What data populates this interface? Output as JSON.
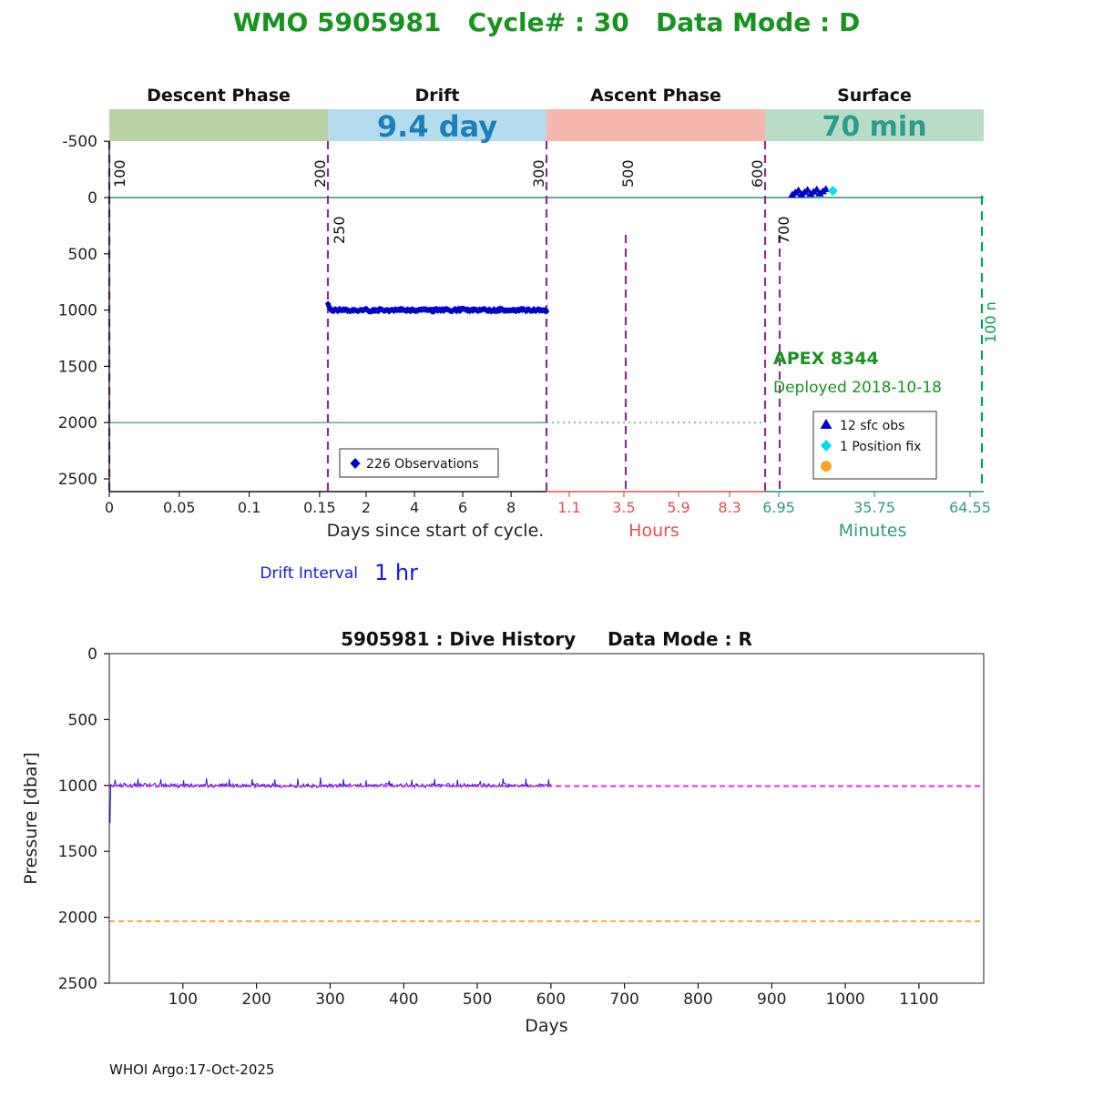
{
  "header": {
    "title": "WMO 5905981   Cycle# : 30   Data Mode : D"
  },
  "footer": {
    "credit": "WHOI Argo:17-Oct-2025"
  },
  "chart_data": [
    {
      "type": "scatter",
      "title": "WMO 5905981   Cycle# : 30   Data Mode : D",
      "phases": [
        {
          "label": "Descent Phase",
          "band_color": "#b9d3a5",
          "band_text": ""
        },
        {
          "label": "Drift",
          "band_color": "#b5dcec",
          "band_text": "9.4 day",
          "band_text_color": "#1b7fbd"
        },
        {
          "label": "Ascent Phase",
          "band_color": "#f7b6ae",
          "band_text": ""
        },
        {
          "label": "Surface",
          "band_color": "#b9dcc7",
          "band_text": "70 min",
          "band_text_color": "#2a9d8f"
        }
      ],
      "x_axis": {
        "days_label": "Days since start of cycle.",
        "segments": [
          {
            "name": "descent-days",
            "domain": [
              0,
              0.156
            ],
            "ticks": [
              "0",
              "0.05",
              "0.1",
              "0.15"
            ],
            "color": "#222222"
          },
          {
            "name": "drift-days",
            "domain": [
              0.165,
              9.4
            ],
            "ticks": [
              "2",
              "4",
              "6",
              "8"
            ],
            "color": "#222222"
          },
          {
            "name": "ascent-hours",
            "domain": [
              0,
              9.9
            ],
            "ticks": [
              "1.1",
              "3.5",
              "5.9",
              "8.3"
            ],
            "color": "#e05050",
            "axis_label": "Hours"
          },
          {
            "name": "surface-minutes",
            "domain": [
              2.8,
              68.7
            ],
            "ticks": [
              "6.95",
              "35.75",
              "64.55"
            ],
            "color": "#2e9c82",
            "axis_label": "Minutes"
          }
        ]
      },
      "y_axis": {
        "ticks": [
          -500,
          0,
          500,
          1000,
          1500,
          2000,
          2500
        ],
        "inverted": true,
        "unit": "dbar"
      },
      "reference_lines": [
        {
          "pressure": 0,
          "color": "#2a8f70",
          "style": "solid",
          "extent": "full"
        },
        {
          "pressure": 2000,
          "color": "#2a8f70",
          "style": "solid",
          "extent": "days"
        },
        {
          "pressure": 2000,
          "color": "#2a8f70",
          "style": "dotted",
          "extent": "hours"
        }
      ],
      "profile_markers": [
        {
          "label": "100"
        },
        {
          "label": "200"
        },
        {
          "label": "250"
        },
        {
          "label": "300"
        },
        {
          "label": "500"
        },
        {
          "label": "600"
        },
        {
          "label": "700"
        },
        {
          "label": "100 n",
          "color": "#00a050"
        }
      ],
      "series": [
        {
          "name": "drift-observations",
          "legend": "226 Observations",
          "marker": "diamond",
          "color": "#0000cd",
          "n": 226,
          "day_range": [
            0.17,
            9.4
          ],
          "pressure_mean": 1000,
          "pressure_jitter": 12
        },
        {
          "name": "surface-observations",
          "legend": "12 sfc obs",
          "marker": "triangle",
          "color": "#0000cd",
          "n": 12,
          "minute_range": [
            11,
            21.5
          ],
          "pressure_range": [
            -70,
            -20
          ]
        },
        {
          "name": "position-fix",
          "legend": "1 Position fix",
          "marker": "diamond",
          "color": "#00dff0",
          "n": 1,
          "minute": 23.2,
          "pressure": -60
        },
        {
          "name": "park-marker",
          "legend": "",
          "marker": "circle",
          "color": "#ffa428",
          "n": 0
        }
      ],
      "annotations": {
        "float_label": "APEX 8344",
        "deployed": "Deployed 2018-10-18",
        "drift_interval_label": "Drift Interval",
        "drift_interval_value": "1 hr"
      }
    },
    {
      "type": "line",
      "title": "5905981 : Dive History     Data Mode : R",
      "xlabel": "Days",
      "ylabel": "Pressure [dbar]",
      "xlim": [
        0,
        1188
      ],
      "ylim": [
        0,
        2500
      ],
      "inverted": true,
      "xticks": [
        100,
        200,
        300,
        400,
        500,
        600,
        700,
        800,
        900,
        1000,
        1100
      ],
      "yticks": [
        0,
        500,
        1000,
        1500,
        2000,
        2500
      ],
      "series": [
        {
          "name": "dive-pressure",
          "color": "#2121cc",
          "day_range": [
            1,
            600
          ],
          "pressure_mean": 1000,
          "pressure_jitter": 14
        }
      ],
      "reference_lines": [
        {
          "name": "park-pressure",
          "pressure": 1005,
          "color": "#ff00ff",
          "style": "dashed"
        },
        {
          "name": "profile-pressure",
          "pressure": 2030,
          "color": "#ffa428",
          "style": "dashed"
        }
      ]
    }
  ]
}
